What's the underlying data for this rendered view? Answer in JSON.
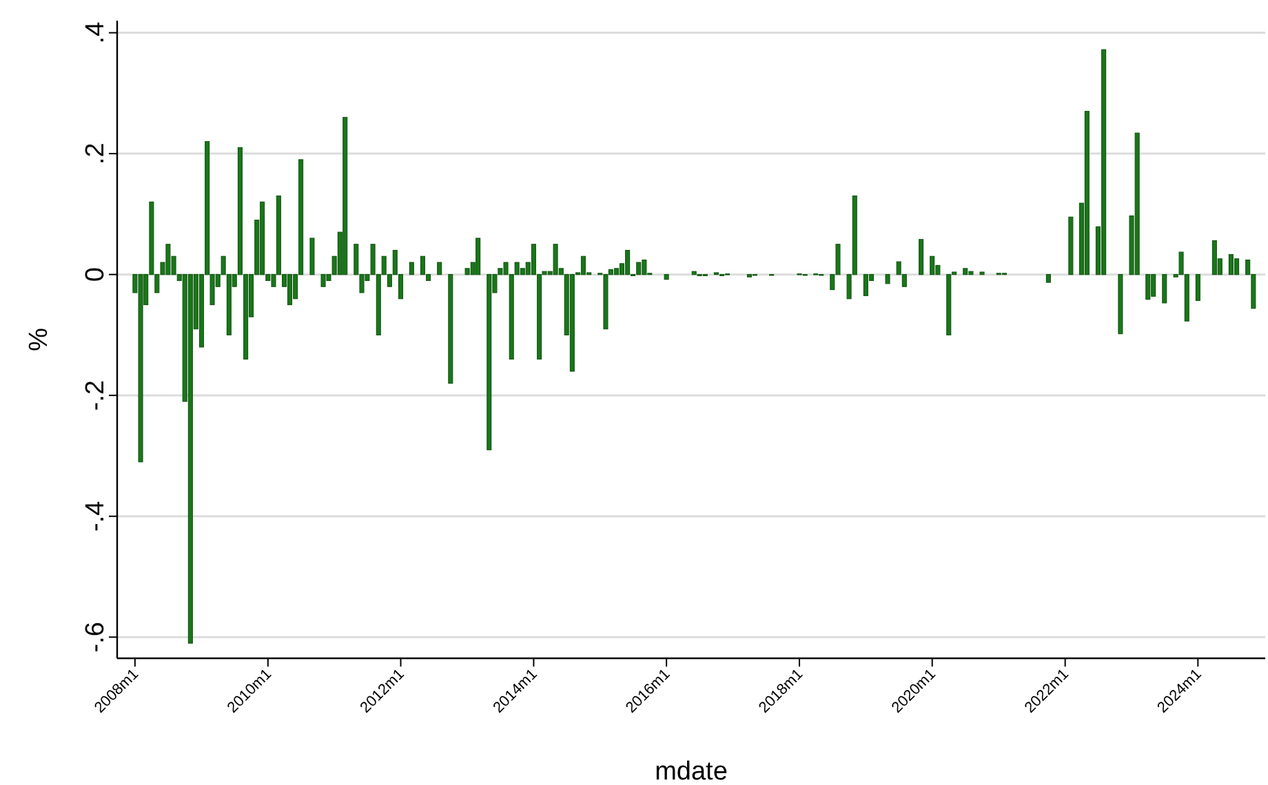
{
  "chart_data": {
    "type": "bar",
    "xlabel": "mdate",
    "ylabel": "%",
    "color": "#1a761a",
    "grid": "y",
    "xlim": [
      "2007-09-25",
      "2025-01-05"
    ],
    "ylim": [
      -0.635,
      0.42
    ],
    "yticks": [
      {
        "value": -0.6,
        "label": "-.6"
      },
      {
        "value": -0.4,
        "label": "-.4"
      },
      {
        "value": -0.2,
        "label": "-.2"
      },
      0,
      {
        "value": 0.2,
        "label": ".2"
      },
      {
        "value": 0.4,
        "label": ".4"
      }
    ],
    "xticks": [
      {
        "value": "2008-01",
        "label": "2008m1"
      },
      {
        "value": "2010-01",
        "label": "2010m1"
      },
      {
        "value": "2012-01",
        "label": "2012m1"
      },
      {
        "value": "2014-01",
        "label": "2014m1"
      },
      {
        "value": "2016-01",
        "label": "2016m1"
      },
      {
        "value": "2018-01",
        "label": "2018m1"
      },
      {
        "value": "2020-01",
        "label": "2020m1"
      },
      {
        "value": "2022-01",
        "label": "2022m1"
      },
      {
        "value": "2024-01",
        "label": "2024m1"
      }
    ],
    "x": [
      "2008-01",
      "2008-02",
      "2008-03",
      "2008-04",
      "2008-05",
      "2008-06",
      "2008-07",
      "2008-08",
      "2008-09",
      "2008-10",
      "2008-11",
      "2008-12",
      "2009-01",
      "2009-02",
      "2009-03",
      "2009-04",
      "2009-05",
      "2009-06",
      "2009-07",
      "2009-08",
      "2009-09",
      "2009-10",
      "2009-11",
      "2009-12",
      "2010-01",
      "2010-02",
      "2010-03",
      "2010-04",
      "2010-05",
      "2010-06",
      "2010-07",
      "2010-09",
      "2010-11",
      "2010-12",
      "2011-01",
      "2011-02",
      "2011-03",
      "2011-05",
      "2011-06",
      "2011-07",
      "2011-08",
      "2011-09",
      "2011-10",
      "2011-11",
      "2011-12",
      "2012-01",
      "2012-03",
      "2012-05",
      "2012-06",
      "2012-08",
      "2012-10",
      "2013-01",
      "2013-02",
      "2013-03",
      "2013-05",
      "2013-06",
      "2013-07",
      "2013-08",
      "2013-09",
      "2013-10",
      "2013-11",
      "2013-12",
      "2014-01",
      "2014-02",
      "2014-03",
      "2014-04",
      "2014-05",
      "2014-06",
      "2014-07",
      "2014-08",
      "2014-09",
      "2014-10",
      "2014-11",
      "2015-01",
      "2015-02",
      "2015-03",
      "2015-04",
      "2015-05",
      "2015-06",
      "2015-07",
      "2015-08",
      "2015-09",
      "2015-10",
      "2016-01",
      "2016-06",
      "2016-07",
      "2016-08",
      "2016-10",
      "2016-11",
      "2016-12",
      "2017-04",
      "2017-05",
      "2017-08",
      "2018-01",
      "2018-02",
      "2018-04",
      "2018-05",
      "2018-07",
      "2018-08",
      "2018-10",
      "2018-11",
      "2019-01",
      "2019-02",
      "2019-05",
      "2019-07",
      "2019-08",
      "2019-11",
      "2020-01",
      "2020-02",
      "2020-04",
      "2020-05",
      "2020-07",
      "2020-08",
      "2020-10",
      "2021-01",
      "2021-02",
      "2021-10",
      "2022-02",
      "2022-04",
      "2022-05",
      "2022-07",
      "2022-08",
      "2022-11",
      "2023-01",
      "2023-02",
      "2023-04",
      "2023-05",
      "2023-07",
      "2023-09",
      "2023-10",
      "2023-11",
      "2024-01",
      "2024-04",
      "2024-05",
      "2024-07",
      "2024-08",
      "2024-10",
      "2024-11"
    ],
    "values": [
      -0.03,
      -0.31,
      -0.05,
      0.12,
      -0.03,
      0.02,
      0.05,
      0.03,
      -0.01,
      -0.21,
      -0.61,
      -0.09,
      -0.12,
      0.22,
      -0.05,
      -0.02,
      0.03,
      -0.1,
      -0.02,
      0.21,
      -0.14,
      -0.07,
      0.09,
      0.12,
      -0.01,
      -0.02,
      0.13,
      -0.02,
      -0.05,
      -0.04,
      0.19,
      0.06,
      -0.02,
      -0.01,
      0.03,
      0.07,
      0.26,
      0.05,
      -0.03,
      -0.01,
      0.05,
      -0.1,
      0.03,
      -0.02,
      0.04,
      -0.04,
      0.02,
      0.03,
      -0.01,
      0.02,
      -0.18,
      0.01,
      0.02,
      0.06,
      -0.29,
      -0.03,
      0.01,
      0.02,
      -0.14,
      0.02,
      0.01,
      0.02,
      0.05,
      -0.14,
      0.005,
      0.005,
      0.05,
      0.01,
      -0.1,
      -0.16,
      0.003,
      0.03,
      0.003,
      0.002,
      -0.09,
      0.008,
      0.01,
      0.018,
      0.04,
      -0.002,
      0.02,
      0.024,
      0.002,
      -0.008,
      0.005,
      -0.002,
      -0.002,
      0.003,
      -0.002,
      0.001,
      -0.004,
      -0.001,
      -0.001,
      0.001,
      -0.001,
      0.001,
      -0.001,
      -0.025,
      0.05,
      -0.04,
      0.13,
      -0.035,
      -0.01,
      -0.015,
      0.021,
      -0.02,
      0.058,
      0.03,
      0.015,
      -0.1,
      0.004,
      0.01,
      0.005,
      0.004,
      0.002,
      0.002,
      -0.013,
      0.095,
      0.118,
      0.27,
      0.079,
      0.372,
      -0.098,
      0.097,
      0.234,
      -0.041,
      -0.036,
      -0.047,
      -0.004,
      0.037,
      -0.077,
      -0.043,
      0.056,
      0.026,
      0.033,
      0.026,
      0.024,
      -0.056
    ]
  }
}
